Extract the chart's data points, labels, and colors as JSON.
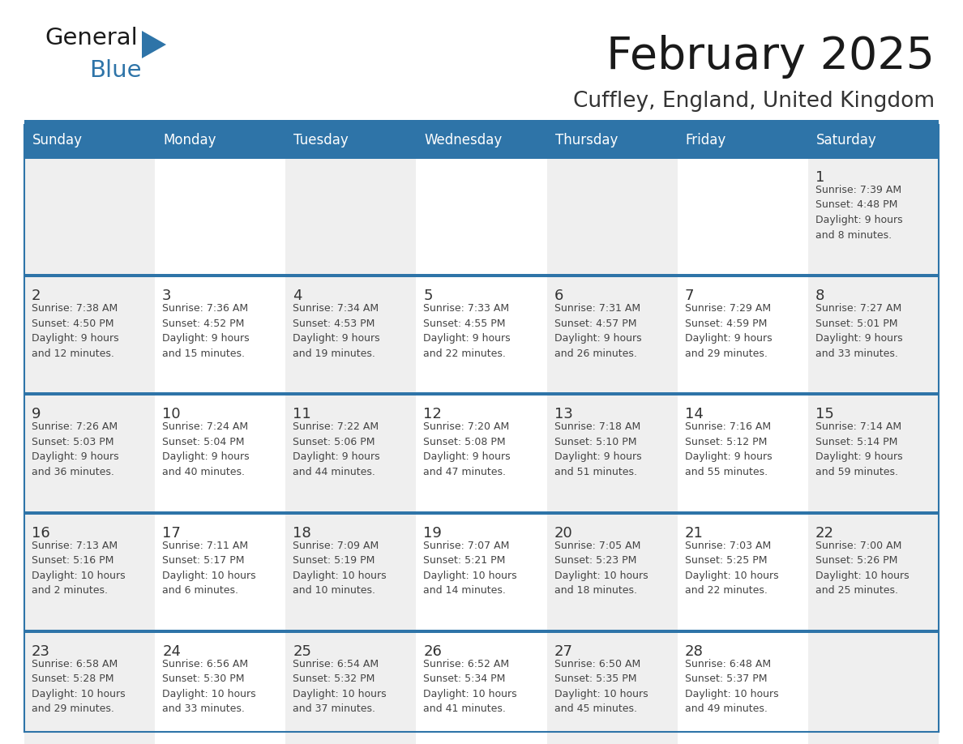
{
  "title": "February 2025",
  "subtitle": "Cuffley, England, United Kingdom",
  "days_of_week": [
    "Sunday",
    "Monday",
    "Tuesday",
    "Wednesday",
    "Thursday",
    "Friday",
    "Saturday"
  ],
  "header_bg": "#2E74A8",
  "header_text_color": "#FFFFFF",
  "cell_bg_odd": "#EFEFEF",
  "cell_bg_even": "#FFFFFF",
  "row_separator_color": "#2E74A8",
  "day_number_color": "#333333",
  "cell_text_color": "#444444",
  "title_color": "#1a1a1a",
  "subtitle_color": "#333333",
  "logo_general_color": "#1a1a1a",
  "logo_blue_color": "#2E74A8",
  "calendar_data": [
    [
      {
        "day": null,
        "info": null
      },
      {
        "day": null,
        "info": null
      },
      {
        "day": null,
        "info": null
      },
      {
        "day": null,
        "info": null
      },
      {
        "day": null,
        "info": null
      },
      {
        "day": null,
        "info": null
      },
      {
        "day": 1,
        "info": "Sunrise: 7:39 AM\nSunset: 4:48 PM\nDaylight: 9 hours\nand 8 minutes."
      }
    ],
    [
      {
        "day": 2,
        "info": "Sunrise: 7:38 AM\nSunset: 4:50 PM\nDaylight: 9 hours\nand 12 minutes."
      },
      {
        "day": 3,
        "info": "Sunrise: 7:36 AM\nSunset: 4:52 PM\nDaylight: 9 hours\nand 15 minutes."
      },
      {
        "day": 4,
        "info": "Sunrise: 7:34 AM\nSunset: 4:53 PM\nDaylight: 9 hours\nand 19 minutes."
      },
      {
        "day": 5,
        "info": "Sunrise: 7:33 AM\nSunset: 4:55 PM\nDaylight: 9 hours\nand 22 minutes."
      },
      {
        "day": 6,
        "info": "Sunrise: 7:31 AM\nSunset: 4:57 PM\nDaylight: 9 hours\nand 26 minutes."
      },
      {
        "day": 7,
        "info": "Sunrise: 7:29 AM\nSunset: 4:59 PM\nDaylight: 9 hours\nand 29 minutes."
      },
      {
        "day": 8,
        "info": "Sunrise: 7:27 AM\nSunset: 5:01 PM\nDaylight: 9 hours\nand 33 minutes."
      }
    ],
    [
      {
        "day": 9,
        "info": "Sunrise: 7:26 AM\nSunset: 5:03 PM\nDaylight: 9 hours\nand 36 minutes."
      },
      {
        "day": 10,
        "info": "Sunrise: 7:24 AM\nSunset: 5:04 PM\nDaylight: 9 hours\nand 40 minutes."
      },
      {
        "day": 11,
        "info": "Sunrise: 7:22 AM\nSunset: 5:06 PM\nDaylight: 9 hours\nand 44 minutes."
      },
      {
        "day": 12,
        "info": "Sunrise: 7:20 AM\nSunset: 5:08 PM\nDaylight: 9 hours\nand 47 minutes."
      },
      {
        "day": 13,
        "info": "Sunrise: 7:18 AM\nSunset: 5:10 PM\nDaylight: 9 hours\nand 51 minutes."
      },
      {
        "day": 14,
        "info": "Sunrise: 7:16 AM\nSunset: 5:12 PM\nDaylight: 9 hours\nand 55 minutes."
      },
      {
        "day": 15,
        "info": "Sunrise: 7:14 AM\nSunset: 5:14 PM\nDaylight: 9 hours\nand 59 minutes."
      }
    ],
    [
      {
        "day": 16,
        "info": "Sunrise: 7:13 AM\nSunset: 5:16 PM\nDaylight: 10 hours\nand 2 minutes."
      },
      {
        "day": 17,
        "info": "Sunrise: 7:11 AM\nSunset: 5:17 PM\nDaylight: 10 hours\nand 6 minutes."
      },
      {
        "day": 18,
        "info": "Sunrise: 7:09 AM\nSunset: 5:19 PM\nDaylight: 10 hours\nand 10 minutes."
      },
      {
        "day": 19,
        "info": "Sunrise: 7:07 AM\nSunset: 5:21 PM\nDaylight: 10 hours\nand 14 minutes."
      },
      {
        "day": 20,
        "info": "Sunrise: 7:05 AM\nSunset: 5:23 PM\nDaylight: 10 hours\nand 18 minutes."
      },
      {
        "day": 21,
        "info": "Sunrise: 7:03 AM\nSunset: 5:25 PM\nDaylight: 10 hours\nand 22 minutes."
      },
      {
        "day": 22,
        "info": "Sunrise: 7:00 AM\nSunset: 5:26 PM\nDaylight: 10 hours\nand 25 minutes."
      }
    ],
    [
      {
        "day": 23,
        "info": "Sunrise: 6:58 AM\nSunset: 5:28 PM\nDaylight: 10 hours\nand 29 minutes."
      },
      {
        "day": 24,
        "info": "Sunrise: 6:56 AM\nSunset: 5:30 PM\nDaylight: 10 hours\nand 33 minutes."
      },
      {
        "day": 25,
        "info": "Sunrise: 6:54 AM\nSunset: 5:32 PM\nDaylight: 10 hours\nand 37 minutes."
      },
      {
        "day": 26,
        "info": "Sunrise: 6:52 AM\nSunset: 5:34 PM\nDaylight: 10 hours\nand 41 minutes."
      },
      {
        "day": 27,
        "info": "Sunrise: 6:50 AM\nSunset: 5:35 PM\nDaylight: 10 hours\nand 45 minutes."
      },
      {
        "day": 28,
        "info": "Sunrise: 6:48 AM\nSunset: 5:37 PM\nDaylight: 10 hours\nand 49 minutes."
      },
      {
        "day": null,
        "info": null
      }
    ]
  ]
}
